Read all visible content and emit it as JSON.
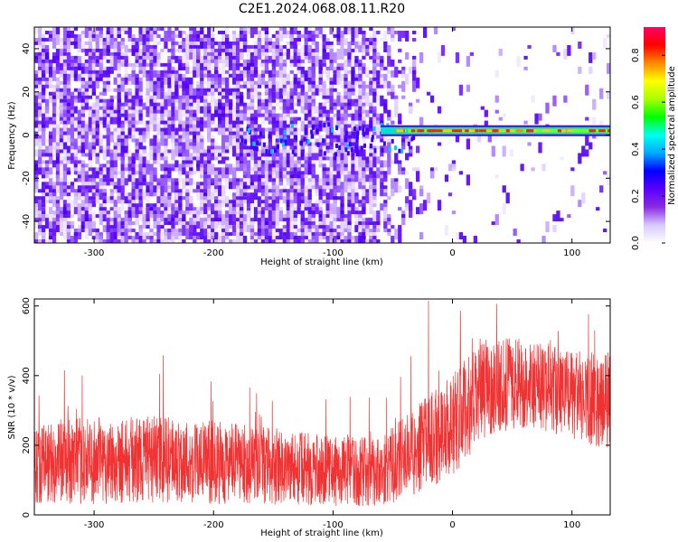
{
  "title": "C2E1.2024.068.08.11.R20",
  "chart_data": [
    {
      "type": "heatmap",
      "name": "spectrogram",
      "xlabel": "Height of straight line (km)",
      "ylabel": "Frequency (Hz)",
      "xlim": [
        -350,
        132
      ],
      "ylim": [
        -50,
        50
      ],
      "xticks": [
        -300,
        -200,
        -100,
        0,
        100
      ],
      "yticks": [
        -40,
        -20,
        0,
        20,
        40
      ],
      "colorbar": {
        "label": "Normalized spectral amplitude",
        "range": [
          0.0,
          0.92
        ],
        "ticks": [
          0.0,
          0.2,
          0.4,
          0.6,
          0.8
        ],
        "colors": [
          "#ffffff",
          "#d8c8ff",
          "#8a2be2",
          "#5a00ff",
          "#0000ff",
          "#00aaff",
          "#00ffee",
          "#00ff00",
          "#aaff00",
          "#ffff00",
          "#ff8800",
          "#ff0000",
          "#ff0066"
        ]
      },
      "features": {
        "noise_region_x": [
          -350,
          -65
        ],
        "transition_x": [
          -65,
          -20
        ],
        "signal_start_x": -60,
        "signal_freq_hz": 2,
        "signal_x_end": 132
      }
    },
    {
      "type": "line",
      "name": "snr",
      "xlabel": "Height of straight line (km)",
      "ylabel": "SNR (10 * v/v)",
      "xlim": [
        -350,
        132
      ],
      "ylim": [
        0,
        620
      ],
      "xticks": [
        -300,
        -200,
        -100,
        0,
        100
      ],
      "yticks": [
        0,
        200,
        400,
        600
      ],
      "color": "#f03232",
      "envelope": [
        {
          "x": -350,
          "median": 150,
          "spread": 120
        },
        {
          "x": -300,
          "median": 155,
          "spread": 125
        },
        {
          "x": -250,
          "median": 160,
          "spread": 125
        },
        {
          "x": -200,
          "median": 150,
          "spread": 120
        },
        {
          "x": -150,
          "median": 140,
          "spread": 110
        },
        {
          "x": -100,
          "median": 125,
          "spread": 100
        },
        {
          "x": -60,
          "median": 125,
          "spread": 100
        },
        {
          "x": -30,
          "median": 185,
          "spread": 130
        },
        {
          "x": 0,
          "median": 260,
          "spread": 150
        },
        {
          "x": 30,
          "median": 370,
          "spread": 140
        },
        {
          "x": 60,
          "median": 380,
          "spread": 130
        },
        {
          "x": 100,
          "median": 340,
          "spread": 130
        },
        {
          "x": 132,
          "median": 330,
          "spread": 140
        }
      ],
      "max_peak": {
        "x": -20,
        "y": 615
      }
    }
  ]
}
